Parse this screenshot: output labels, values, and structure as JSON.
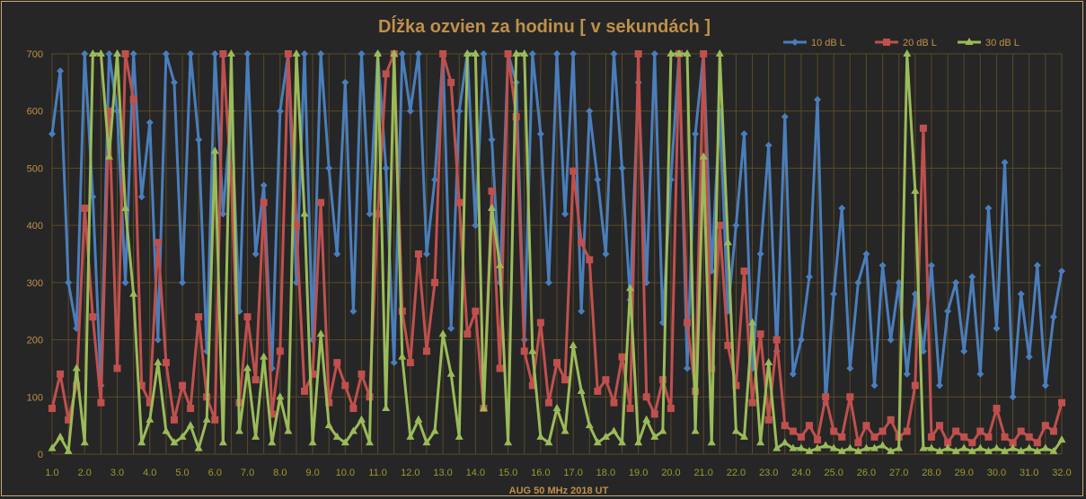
{
  "chart_data": {
    "type": "line",
    "title": "Dĺžka ozvien za hodinu [ v sekundách ]",
    "xlabel": "AUG 50 MHz  2018  UT",
    "ylabel": "",
    "xlim": [
      1.0,
      32.0
    ],
    "ylim": [
      0,
      700
    ],
    "x_step": 0.25,
    "x_ticks": [
      "1.0",
      "2.0",
      "3.0",
      "4.0",
      "5.0",
      "6.0",
      "7.0",
      "8.0",
      "9.0",
      "10.0",
      "11.0",
      "12.0",
      "13.0",
      "14.0",
      "15.0",
      "16.0",
      "17.0",
      "18.0",
      "19.0",
      "20.0",
      "21.0",
      "22.0",
      "23.0",
      "24.0",
      "25.0",
      "26.0",
      "27.0",
      "28.0",
      "29.0",
      "30.0",
      "31.0",
      "32.0"
    ],
    "y_ticks": [
      "0",
      "100",
      "200",
      "300",
      "400",
      "500",
      "600",
      "700"
    ],
    "grid": true,
    "legend_position": "top-right",
    "series": [
      {
        "name": "10 dB L",
        "color": "#4a7ebb",
        "marker": "diamond",
        "values": [
          560,
          670,
          300,
          220,
          700,
          450,
          120,
          700,
          600,
          300,
          700,
          450,
          580,
          200,
          700,
          650,
          300,
          700,
          550,
          180,
          700,
          420,
          600,
          250,
          700,
          350,
          470,
          150,
          600,
          700,
          300,
          700,
          200,
          700,
          500,
          350,
          650,
          250,
          700,
          420,
          700,
          500,
          160,
          700,
          600,
          700,
          350,
          480,
          700,
          220,
          600,
          700,
          400,
          700,
          550,
          300,
          700,
          650,
          200,
          700,
          560,
          300,
          700,
          420,
          700,
          250,
          600,
          480,
          350,
          700,
          500,
          270,
          650,
          300,
          700,
          230,
          480,
          700,
          150,
          560,
          700,
          320,
          600,
          250,
          400,
          560,
          150,
          350,
          540,
          180,
          590,
          140,
          200,
          310,
          620,
          90,
          280,
          430,
          150,
          300,
          350,
          120,
          330,
          200,
          300,
          140,
          280,
          180,
          330,
          120,
          250,
          300,
          180,
          310,
          140,
          430,
          220,
          510,
          100,
          280,
          170,
          330,
          120,
          240,
          320
        ]
      },
      {
        "name": "20 dB L",
        "color": "#c0504d",
        "marker": "square",
        "values": [
          80,
          140,
          60,
          120,
          430,
          240,
          90,
          600,
          150,
          700,
          620,
          120,
          90,
          370,
          160,
          60,
          120,
          80,
          240,
          100,
          60,
          700,
          480,
          90,
          240,
          130,
          440,
          70,
          180,
          700,
          400,
          110,
          140,
          440,
          90,
          160,
          120,
          80,
          140,
          100,
          420,
          665,
          700,
          250,
          160,
          350,
          180,
          300,
          700,
          650,
          440,
          210,
          250,
          80,
          460,
          150,
          700,
          590,
          180,
          120,
          230,
          90,
          160,
          130,
          495,
          370,
          340,
          110,
          130,
          90,
          170,
          80,
          700,
          100,
          70,
          130,
          80,
          700,
          230,
          110,
          700,
          150,
          400,
          190,
          120,
          320,
          90,
          210,
          60,
          200,
          50,
          40,
          30,
          50,
          25,
          100,
          40,
          30,
          100,
          20,
          50,
          30,
          40,
          60,
          30,
          40,
          120,
          570,
          30,
          50,
          20,
          40,
          30,
          20,
          40,
          30,
          80,
          30,
          20,
          40,
          30,
          20,
          50,
          40,
          90
        ]
      },
      {
        "name": "30 dB L",
        "color": "#9bbb59",
        "marker": "triangle",
        "values": [
          10,
          30,
          5,
          150,
          20,
          700,
          700,
          520,
          700,
          430,
          280,
          20,
          60,
          160,
          40,
          20,
          30,
          50,
          10,
          60,
          530,
          20,
          700,
          40,
          150,
          30,
          170,
          20,
          100,
          40,
          700,
          420,
          20,
          210,
          50,
          30,
          20,
          40,
          60,
          20,
          700,
          80,
          700,
          170,
          30,
          60,
          20,
          40,
          210,
          140,
          30,
          700,
          700,
          80,
          430,
          330,
          20,
          700,
          700,
          180,
          30,
          20,
          80,
          40,
          190,
          110,
          50,
          20,
          30,
          40,
          20,
          290,
          20,
          60,
          30,
          40,
          700,
          700,
          700,
          40,
          520,
          20,
          700,
          370,
          40,
          30,
          230,
          20,
          160,
          10,
          20,
          10,
          10,
          5,
          10,
          15,
          10,
          5,
          10,
          5,
          10,
          10,
          15,
          5,
          10,
          700,
          460,
          10,
          10,
          5,
          10,
          5,
          10,
          5,
          10,
          5,
          10,
          5,
          10,
          5,
          10,
          5,
          10,
          5,
          25
        ]
      }
    ]
  }
}
